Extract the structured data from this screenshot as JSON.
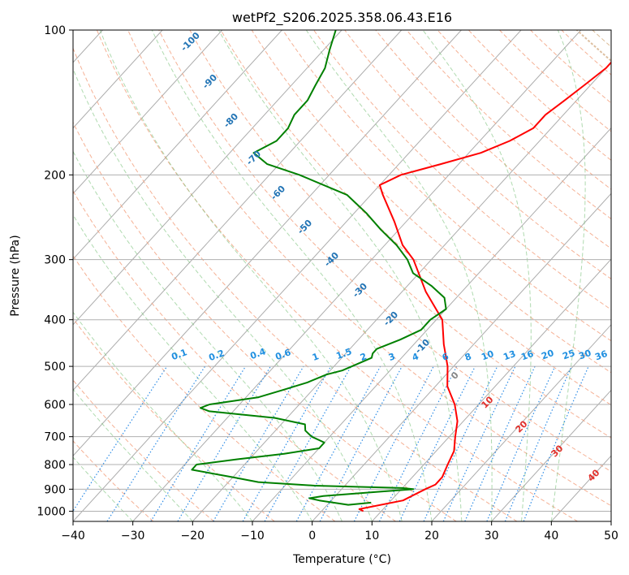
{
  "chart_data": {
    "type": "line",
    "title": "wetPf2_S206.2025.358.06.43.E16",
    "xlabel": "Temperature (°C)",
    "ylabel": "Pressure (hPa)",
    "xlim": [
      -40,
      50
    ],
    "ylim": [
      1050,
      100
    ],
    "y_scale": "log",
    "x_ticks": [
      "−40",
      "−30",
      "−20",
      "−10",
      "0",
      "10",
      "20",
      "30",
      "40",
      "50"
    ],
    "y_ticks": [
      {
        "p": 100,
        "label": "100"
      },
      {
        "p": 200,
        "label": "200"
      },
      {
        "p": 300,
        "label": "300"
      },
      {
        "p": 400,
        "label": "400"
      },
      {
        "p": 500,
        "label": "500"
      },
      {
        "p": 600,
        "label": "600"
      },
      {
        "p": 700,
        "label": "700"
      },
      {
        "p": 800,
        "label": "800"
      },
      {
        "p": 900,
        "label": "900"
      },
      {
        "p": 1000,
        "label": "1000"
      }
    ],
    "grid": true,
    "series": [
      {
        "color": "#ff0000",
        "points": [
          [
            1000,
            7
          ],
          [
            990,
            6
          ],
          [
            950,
            12
          ],
          [
            900,
            14
          ],
          [
            880,
            15
          ],
          [
            850,
            15
          ],
          [
            800,
            14
          ],
          [
            750,
            13
          ],
          [
            700,
            11
          ],
          [
            650,
            9
          ],
          [
            600,
            6
          ],
          [
            550,
            2
          ],
          [
            500,
            -1
          ],
          [
            450,
            -5
          ],
          [
            400,
            -9
          ],
          [
            350,
            -16
          ],
          [
            300,
            -23
          ],
          [
            280,
            -27
          ],
          [
            250,
            -32
          ],
          [
            220,
            -38
          ],
          [
            210,
            -40
          ],
          [
            200,
            -38
          ],
          [
            190,
            -33
          ],
          [
            180,
            -28
          ],
          [
            170,
            -25
          ],
          [
            160,
            -23
          ],
          [
            150,
            -23
          ],
          [
            140,
            -22
          ],
          [
            130,
            -21
          ],
          [
            120,
            -20
          ],
          [
            110,
            -20
          ],
          [
            100,
            -20
          ]
        ]
      },
      {
        "color": "#008000",
        "points": [
          [
            960,
            7
          ],
          [
            970,
            3.5
          ],
          [
            950,
            -2
          ],
          [
            940,
            -4
          ],
          [
            930,
            -2
          ],
          [
            910,
            7
          ],
          [
            900,
            12
          ],
          [
            895,
            10
          ],
          [
            885,
            -5
          ],
          [
            870,
            -15
          ],
          [
            850,
            -20
          ],
          [
            820,
            -28
          ],
          [
            800,
            -28
          ],
          [
            780,
            -22
          ],
          [
            760,
            -15
          ],
          [
            740,
            -10
          ],
          [
            720,
            -10
          ],
          [
            700,
            -13
          ],
          [
            680,
            -15
          ],
          [
            660,
            -16
          ],
          [
            640,
            -22
          ],
          [
            620,
            -34
          ],
          [
            610,
            -36
          ],
          [
            600,
            -35
          ],
          [
            580,
            -28
          ],
          [
            560,
            -25
          ],
          [
            540,
            -22
          ],
          [
            520,
            -20
          ],
          [
            510,
            -18
          ],
          [
            500,
            -17
          ],
          [
            480,
            -15
          ],
          [
            470,
            -15.5
          ],
          [
            460,
            -15.5
          ],
          [
            440,
            -13
          ],
          [
            420,
            -11
          ],
          [
            400,
            -11
          ],
          [
            380,
            -10
          ],
          [
            360,
            -12
          ],
          [
            340,
            -16
          ],
          [
            320,
            -21
          ],
          [
            300,
            -24
          ],
          [
            280,
            -28
          ],
          [
            260,
            -33
          ],
          [
            240,
            -38
          ],
          [
            220,
            -44
          ],
          [
            200,
            -55
          ],
          [
            190,
            -62
          ],
          [
            180,
            -66
          ],
          [
            170,
            -64
          ],
          [
            160,
            -64
          ],
          [
            150,
            -65
          ],
          [
            140,
            -65
          ],
          [
            130,
            -66
          ],
          [
            120,
            -67
          ],
          [
            110,
            -69
          ],
          [
            100,
            -71
          ]
        ]
      }
    ],
    "annotations": {
      "mixing_ratio": [
        "0.1",
        "0.2",
        "0.4",
        "0.6",
        "1",
        "1.5",
        "2",
        "3",
        "4",
        "6",
        "8",
        "10",
        "13",
        "16",
        "20",
        "25",
        "30",
        "36"
      ],
      "dry_adiabats": [
        "-100",
        "-90",
        "-80",
        "-70",
        "-60",
        "-50",
        "-40",
        "-30",
        "-20",
        "-10"
      ],
      "moist_adiabats": [
        "0",
        "10",
        "20",
        "30",
        "40"
      ]
    }
  }
}
